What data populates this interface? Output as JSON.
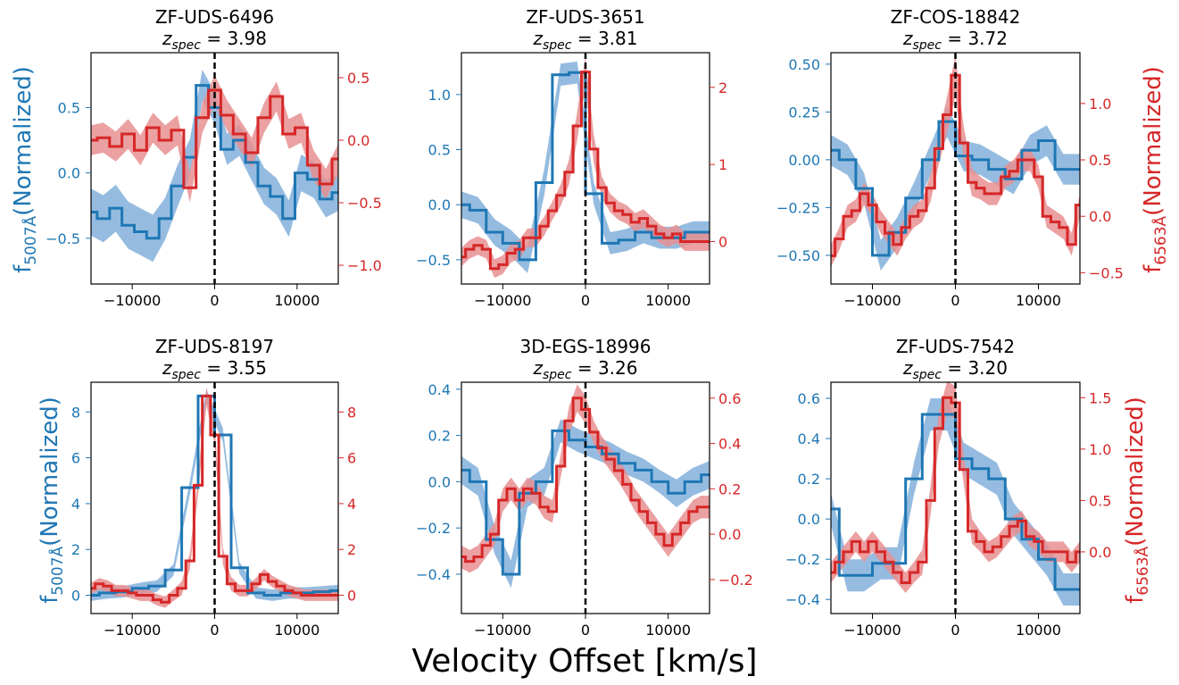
{
  "colors": {
    "blue": "#1f77b4",
    "blue_band": "#8fb8de",
    "red": "#d62728",
    "red_band": "#e88f90",
    "zero_line": "#000000"
  },
  "figure": {
    "xlabel": "Velocity Offset [km/s]",
    "left_ylabel_text": "f",
    "left_ylabel_sub": "5007Å",
    "left_ylabel_rest": "(Normalized)",
    "right_ylabel_text": "f",
    "right_ylabel_sub": "6563Å",
    "right_ylabel_rest": "(Normalized)",
    "z_label": "z",
    "z_sub": "spec"
  },
  "chart_data": [
    {
      "type": "line",
      "title": "ZF-UDS-6496",
      "zspec": "3.98",
      "xlim": [
        -15000,
        15000
      ],
      "xticks": [
        -10000,
        0,
        10000
      ],
      "left": {
        "ylim": [
          -0.85,
          0.92
        ],
        "ticks": [
          -0.5,
          0.0,
          0.5
        ],
        "tick_labels": [
          "−0.5",
          "0.0",
          "0.5"
        ],
        "x": [
          -15000,
          -13500,
          -12000,
          -10500,
          -9000,
          -7500,
          -6000,
          -4500,
          -3000,
          -1500,
          0,
          1500,
          3000,
          4500,
          6000,
          7500,
          9000,
          10500,
          12000,
          13500,
          15000
        ],
        "y": [
          -0.3,
          -0.35,
          -0.27,
          -0.4,
          -0.45,
          -0.5,
          -0.35,
          -0.1,
          0.12,
          0.67,
          0.5,
          0.18,
          0.25,
          0.08,
          -0.1,
          -0.18,
          -0.35,
          0.0,
          -0.05,
          -0.2,
          -0.15
        ],
        "err": [
          0.18,
          0.18,
          0.18,
          0.18,
          0.18,
          0.18,
          0.16,
          0.16,
          0.14,
          0.12,
          0.12,
          0.12,
          0.12,
          0.14,
          0.14,
          0.14,
          0.14,
          0.14,
          0.14,
          0.14,
          0.14
        ]
      },
      "right": {
        "ylim": [
          -1.15,
          0.7
        ],
        "ticks": [
          -1.0,
          -0.5,
          0.0,
          0.5
        ],
        "tick_labels": [
          "−1.0",
          "−0.5",
          "0.0",
          "0.5"
        ],
        "x": [
          -15000,
          -13500,
          -12000,
          -10500,
          -9000,
          -7500,
          -6000,
          -4500,
          -3000,
          -1500,
          0,
          1500,
          3000,
          4500,
          6000,
          7500,
          9000,
          10500,
          12000,
          13500,
          15000
        ],
        "y": [
          0.0,
          0.02,
          -0.05,
          0.05,
          -0.08,
          0.1,
          0.0,
          0.08,
          -0.38,
          0.18,
          0.4,
          0.2,
          0.05,
          -0.1,
          0.18,
          0.35,
          0.05,
          0.1,
          -0.2,
          -0.35,
          -0.15
        ],
        "err": [
          0.12,
          0.12,
          0.12,
          0.12,
          0.12,
          0.12,
          0.12,
          0.12,
          0.12,
          0.12,
          0.12,
          0.12,
          0.12,
          0.12,
          0.12,
          0.12,
          0.12,
          0.12,
          0.12,
          0.12,
          0.12
        ]
      }
    },
    {
      "type": "line",
      "title": "ZF-UDS-3651",
      "zspec": "3.81",
      "xlim": [
        -15000,
        15000
      ],
      "xticks": [
        -10000,
        0,
        10000
      ],
      "left": {
        "ylim": [
          -0.72,
          1.38
        ],
        "ticks": [
          -0.5,
          0.0,
          0.5,
          1.0
        ],
        "tick_labels": [
          "−0.5",
          "0.0",
          "0.5",
          "1.0"
        ],
        "x": [
          -15000,
          -13000,
          -11000,
          -9000,
          -7000,
          -5000,
          -3000,
          -1000,
          1000,
          3000,
          5000,
          7000,
          9000,
          11000,
          13000,
          15000
        ],
        "y": [
          0.0,
          -0.05,
          -0.25,
          -0.35,
          -0.5,
          0.2,
          1.18,
          1.2,
          0.1,
          -0.35,
          -0.32,
          -0.25,
          -0.3,
          -0.3,
          -0.25,
          -0.25
        ],
        "err": [
          0.12,
          0.12,
          0.12,
          0.12,
          0.12,
          0.12,
          0.1,
          0.1,
          0.1,
          0.1,
          0.1,
          0.1,
          0.1,
          0.1,
          0.1,
          0.1
        ]
      },
      "right": {
        "ylim": [
          -0.55,
          2.45
        ],
        "ticks": [
          0,
          1,
          2
        ],
        "tick_labels": [
          "0",
          "1",
          "2"
        ],
        "x": [
          -15000,
          -14000,
          -13000,
          -12000,
          -11000,
          -10000,
          -9000,
          -8000,
          -7000,
          -6000,
          -5000,
          -4000,
          -3000,
          -2000,
          -1000,
          0,
          1000,
          2000,
          3000,
          4000,
          5000,
          6000,
          7000,
          8000,
          9000,
          10000,
          11000,
          12000,
          13000,
          14000,
          15000
        ],
        "y": [
          -0.2,
          -0.1,
          -0.05,
          -0.1,
          -0.35,
          -0.3,
          -0.15,
          -0.1,
          0.05,
          0.05,
          0.2,
          0.4,
          0.6,
          0.9,
          1.5,
          2.2,
          1.2,
          0.7,
          0.5,
          0.4,
          0.35,
          0.25,
          0.3,
          0.2,
          0.1,
          0.05,
          0.1,
          0.0,
          0.0,
          0.0,
          0.0
        ],
        "err": [
          0.12,
          0.12,
          0.12,
          0.12,
          0.12,
          0.12,
          0.12,
          0.12,
          0.12,
          0.12,
          0.12,
          0.12,
          0.14,
          0.16,
          0.18,
          0.2,
          0.18,
          0.14,
          0.12,
          0.12,
          0.12,
          0.12,
          0.12,
          0.12,
          0.12,
          0.12,
          0.12,
          0.12,
          0.12,
          0.12,
          0.12
        ]
      }
    },
    {
      "type": "line",
      "title": "ZF-COS-18842",
      "zspec": "3.72",
      "xlim": [
        -15000,
        15000
      ],
      "xticks": [
        -10000,
        0,
        10000
      ],
      "left": {
        "ylim": [
          -0.65,
          0.56
        ],
        "ticks": [
          -0.5,
          -0.25,
          0.0,
          0.25,
          0.5
        ],
        "tick_labels": [
          "−0.50",
          "−0.25",
          "0.00",
          "0.25",
          "0.50"
        ],
        "x": [
          -15000,
          -13000,
          -11000,
          -9000,
          -7000,
          -5000,
          -3000,
          -1000,
          1000,
          3000,
          5000,
          7000,
          9000,
          11000,
          13000,
          15000
        ],
        "y": [
          0.05,
          0.0,
          -0.15,
          -0.5,
          -0.38,
          -0.2,
          0.0,
          0.2,
          0.02,
          0.0,
          -0.05,
          -0.1,
          0.05,
          0.1,
          -0.05,
          -0.05
        ],
        "err": [
          0.08,
          0.08,
          0.08,
          0.08,
          0.08,
          0.08,
          0.08,
          0.08,
          0.08,
          0.08,
          0.08,
          0.08,
          0.08,
          0.08,
          0.08,
          0.08
        ]
      },
      "right": {
        "ylim": [
          -0.6,
          1.45
        ],
        "ticks": [
          -0.5,
          0.0,
          0.5,
          1.0
        ],
        "tick_labels": [
          "−0.5",
          "0.0",
          "0.5",
          "1.0"
        ],
        "x": [
          -15000,
          -14000,
          -13000,
          -12000,
          -11000,
          -10000,
          -9000,
          -8000,
          -7000,
          -6000,
          -5000,
          -4000,
          -3000,
          -2000,
          -1000,
          0,
          1000,
          2000,
          3000,
          4000,
          5000,
          6000,
          7000,
          8000,
          9000,
          10000,
          11000,
          12000,
          13000,
          14000,
          15000
        ],
        "y": [
          -0.35,
          -0.2,
          0.0,
          0.05,
          0.2,
          0.1,
          -0.05,
          -0.15,
          -0.25,
          -0.1,
          0.0,
          0.05,
          0.25,
          0.6,
          0.9,
          1.25,
          0.65,
          0.3,
          0.25,
          0.2,
          0.2,
          0.35,
          0.4,
          0.5,
          0.5,
          0.35,
          0.0,
          -0.05,
          -0.1,
          -0.25,
          0.1
        ],
        "err": [
          0.1,
          0.1,
          0.1,
          0.1,
          0.1,
          0.1,
          0.1,
          0.1,
          0.1,
          0.1,
          0.1,
          0.1,
          0.12,
          0.14,
          0.16,
          0.18,
          0.14,
          0.12,
          0.1,
          0.1,
          0.1,
          0.1,
          0.1,
          0.1,
          0.1,
          0.1,
          0.1,
          0.1,
          0.1,
          0.1,
          0.1
        ]
      }
    },
    {
      "type": "line",
      "title": "ZF-UDS-8197",
      "zspec": "3.55",
      "xlim": [
        -15000,
        15000
      ],
      "xticks": [
        -10000,
        0,
        10000
      ],
      "left": {
        "ylim": [
          -0.8,
          9.3
        ],
        "ticks": [
          0,
          2,
          4,
          6,
          8
        ],
        "tick_labels": [
          "0",
          "2",
          "4",
          "6",
          "8"
        ],
        "x": [
          -15000,
          -13000,
          -11000,
          -9000,
          -7000,
          -5000,
          -3000,
          -1000,
          1000,
          3000,
          5000,
          7000,
          9000,
          11000,
          13000,
          15000
        ],
        "y": [
          0.0,
          0.1,
          0.15,
          0.3,
          0.4,
          1.1,
          4.7,
          8.7,
          7.0,
          1.2,
          0.1,
          0.0,
          0.1,
          0.1,
          0.15,
          0.2
        ],
        "err": [
          0.25,
          0.25,
          0.25,
          0.25,
          0.25,
          0.25,
          0.3,
          0.3,
          0.3,
          0.25,
          0.25,
          0.25,
          0.25,
          0.25,
          0.25,
          0.25
        ]
      },
      "right": {
        "ylim": [
          -0.8,
          9.3
        ],
        "ticks": [
          0,
          2,
          4,
          6,
          8
        ],
        "tick_labels": [
          "0",
          "2",
          "4",
          "6",
          "8"
        ],
        "x": [
          -15000,
          -14000,
          -13000,
          -12000,
          -11000,
          -10000,
          -9000,
          -8000,
          -7000,
          -6000,
          -5000,
          -4000,
          -3000,
          -2000,
          -1000,
          0,
          1000,
          2000,
          3000,
          4000,
          5000,
          6000,
          7000,
          8000,
          9000,
          10000,
          11000,
          12000,
          13000,
          14000,
          15000
        ],
        "y": [
          0.3,
          0.5,
          0.4,
          0.2,
          0.2,
          0.1,
          0.0,
          0.0,
          -0.2,
          -0.3,
          0.0,
          0.3,
          1.5,
          4.8,
          8.7,
          7.0,
          1.7,
          0.5,
          0.2,
          0.2,
          0.5,
          0.9,
          0.6,
          0.4,
          0.2,
          0.1,
          0.0,
          0.0,
          0.0,
          0.0,
          0.0
        ],
        "err": [
          0.25,
          0.25,
          0.25,
          0.25,
          0.25,
          0.25,
          0.25,
          0.25,
          0.25,
          0.25,
          0.25,
          0.3,
          0.35,
          0.4,
          0.4,
          0.4,
          0.35,
          0.3,
          0.25,
          0.25,
          0.25,
          0.25,
          0.25,
          0.25,
          0.25,
          0.25,
          0.25,
          0.25,
          0.25,
          0.25,
          0.25
        ]
      }
    },
    {
      "type": "line",
      "title": "3D-EGS-18996",
      "zspec": "3.26",
      "xlim": [
        -15000,
        15000
      ],
      "xticks": [
        -10000,
        0,
        10000
      ],
      "left": {
        "ylim": [
          -0.57,
          0.43
        ],
        "ticks": [
          -0.4,
          -0.2,
          0.0,
          0.2,
          0.4
        ],
        "tick_labels": [
          "−0.4",
          "−0.2",
          "0.0",
          "0.2",
          "0.4"
        ],
        "x": [
          -15000,
          -13000,
          -11000,
          -9000,
          -7000,
          -5000,
          -3000,
          -1000,
          1000,
          3000,
          5000,
          7000,
          9000,
          11000,
          13000,
          15000
        ],
        "y": [
          0.05,
          0.0,
          -0.25,
          -0.4,
          -0.05,
          0.0,
          0.22,
          0.18,
          0.15,
          0.12,
          0.08,
          0.05,
          0.0,
          -0.05,
          0.0,
          0.03
        ],
        "err": [
          0.06,
          0.06,
          0.06,
          0.06,
          0.06,
          0.06,
          0.05,
          0.05,
          0.05,
          0.05,
          0.05,
          0.05,
          0.05,
          0.06,
          0.06,
          0.06
        ]
      },
      "right": {
        "ylim": [
          -0.35,
          0.67
        ],
        "ticks": [
          -0.2,
          0.0,
          0.2,
          0.4,
          0.6
        ],
        "tick_labels": [
          "−0.2",
          "0.0",
          "0.2",
          "0.4",
          "0.6"
        ],
        "x": [
          -15000,
          -14000,
          -13000,
          -12000,
          -11000,
          -10000,
          -9000,
          -8000,
          -7000,
          -6000,
          -5000,
          -4000,
          -3000,
          -2000,
          -1000,
          0,
          1000,
          2000,
          3000,
          4000,
          5000,
          6000,
          7000,
          8000,
          9000,
          10000,
          11000,
          12000,
          13000,
          14000,
          15000
        ],
        "y": [
          -0.1,
          -0.12,
          -0.1,
          -0.05,
          0.0,
          0.15,
          0.2,
          0.15,
          0.2,
          0.18,
          0.12,
          0.1,
          0.3,
          0.5,
          0.6,
          0.55,
          0.45,
          0.38,
          0.33,
          0.28,
          0.22,
          0.15,
          0.1,
          0.05,
          0.0,
          -0.05,
          0.0,
          0.05,
          0.1,
          0.12,
          0.12
        ],
        "err": [
          0.05,
          0.05,
          0.05,
          0.05,
          0.05,
          0.05,
          0.05,
          0.05,
          0.05,
          0.05,
          0.05,
          0.05,
          0.05,
          0.06,
          0.06,
          0.06,
          0.05,
          0.05,
          0.05,
          0.05,
          0.05,
          0.05,
          0.05,
          0.05,
          0.05,
          0.05,
          0.05,
          0.05,
          0.05,
          0.05,
          0.05
        ]
      }
    },
    {
      "type": "line",
      "title": "ZF-UDS-7542",
      "zspec": "3.20",
      "xlim": [
        -15000,
        15000
      ],
      "xticks": [
        -10000,
        0,
        10000
      ],
      "left": {
        "ylim": [
          -0.47,
          0.68
        ],
        "ticks": [
          -0.4,
          -0.2,
          0.0,
          0.2,
          0.4,
          0.6
        ],
        "tick_labels": [
          "−0.4",
          "−0.2",
          "0.0",
          "0.2",
          "0.4",
          "0.6"
        ],
        "x": [
          -15000,
          -13000,
          -11000,
          -9000,
          -7000,
          -5000,
          -3000,
          -1000,
          1000,
          3000,
          5000,
          7000,
          9000,
          11000,
          13000,
          15000
        ],
        "y": [
          0.05,
          -0.28,
          -0.28,
          -0.22,
          -0.22,
          0.2,
          0.52,
          0.52,
          0.3,
          0.25,
          0.2,
          0.0,
          -0.1,
          -0.2,
          -0.35,
          -0.35
        ],
        "err": [
          0.08,
          0.08,
          0.08,
          0.08,
          0.08,
          0.08,
          0.08,
          0.08,
          0.08,
          0.08,
          0.08,
          0.08,
          0.08,
          0.08,
          0.08,
          0.08
        ]
      },
      "right": {
        "ylim": [
          -0.6,
          1.65
        ],
        "ticks": [
          0.0,
          0.5,
          1.0,
          1.5
        ],
        "tick_labels": [
          "0.0",
          "0.5",
          "1.0",
          "1.5"
        ],
        "x": [
          -15000,
          -14000,
          -13000,
          -12000,
          -11000,
          -10000,
          -9000,
          -8000,
          -7000,
          -6000,
          -5000,
          -4000,
          -3000,
          -2000,
          -1000,
          0,
          1000,
          2000,
          3000,
          4000,
          5000,
          6000,
          7000,
          8000,
          9000,
          10000,
          11000,
          12000,
          13000,
          14000,
          15000
        ],
        "y": [
          -0.2,
          -0.1,
          0.0,
          0.1,
          0.0,
          0.1,
          0.0,
          -0.1,
          -0.2,
          -0.3,
          -0.2,
          -0.1,
          0.5,
          1.2,
          1.5,
          1.45,
          0.8,
          0.2,
          0.1,
          0.0,
          0.05,
          0.15,
          0.25,
          0.3,
          0.15,
          0.1,
          0.0,
          0.0,
          0.0,
          -0.1,
          0.0
        ],
        "err": [
          0.1,
          0.1,
          0.1,
          0.1,
          0.1,
          0.1,
          0.1,
          0.1,
          0.1,
          0.1,
          0.1,
          0.12,
          0.14,
          0.16,
          0.16,
          0.16,
          0.14,
          0.12,
          0.1,
          0.1,
          0.1,
          0.1,
          0.1,
          0.1,
          0.1,
          0.1,
          0.1,
          0.1,
          0.1,
          0.1,
          0.1
        ]
      }
    }
  ]
}
